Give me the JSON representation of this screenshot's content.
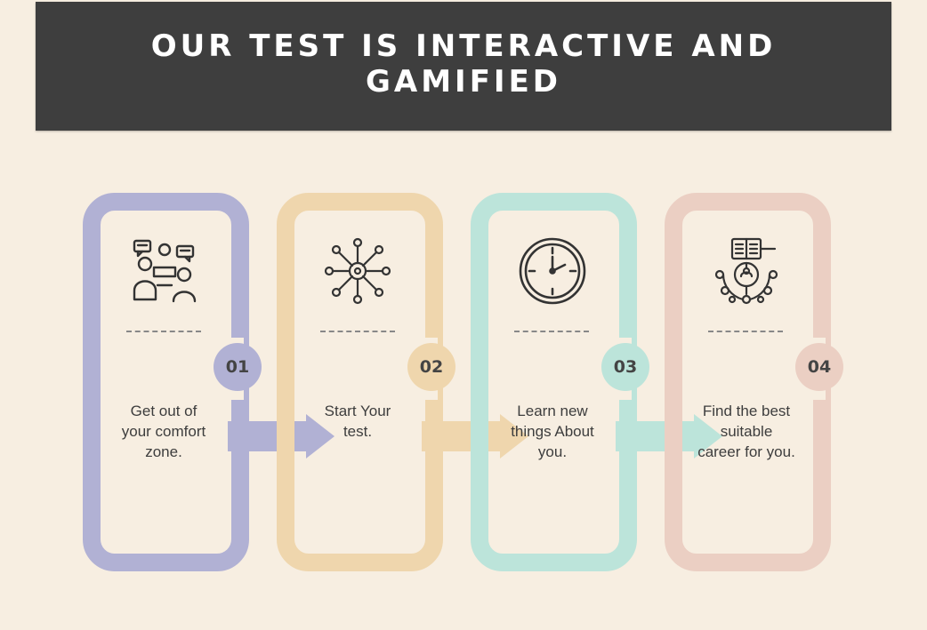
{
  "header": {
    "title": "OUR TEST IS INTERACTIVE AND GAMIFIED"
  },
  "steps": [
    {
      "number": "01",
      "text": "Get out of your comfort zone.",
      "icon": "discussion-people-icon",
      "color": "#b1b1d4"
    },
    {
      "number": "02",
      "text": "Start Your test.",
      "icon": "gear-network-icon",
      "color": "#efd6ad"
    },
    {
      "number": "03",
      "text": "Learn new things About you.",
      "icon": "clock-icon",
      "color": "#bce4da"
    },
    {
      "number": "04",
      "text": "Find the best suitable career for you.",
      "icon": "career-search-icon",
      "color": "#ebcfc3"
    }
  ],
  "colors": {
    "background": "#f7eee1",
    "header_bg": "#3e3e3e",
    "header_text": "#ffffff"
  }
}
